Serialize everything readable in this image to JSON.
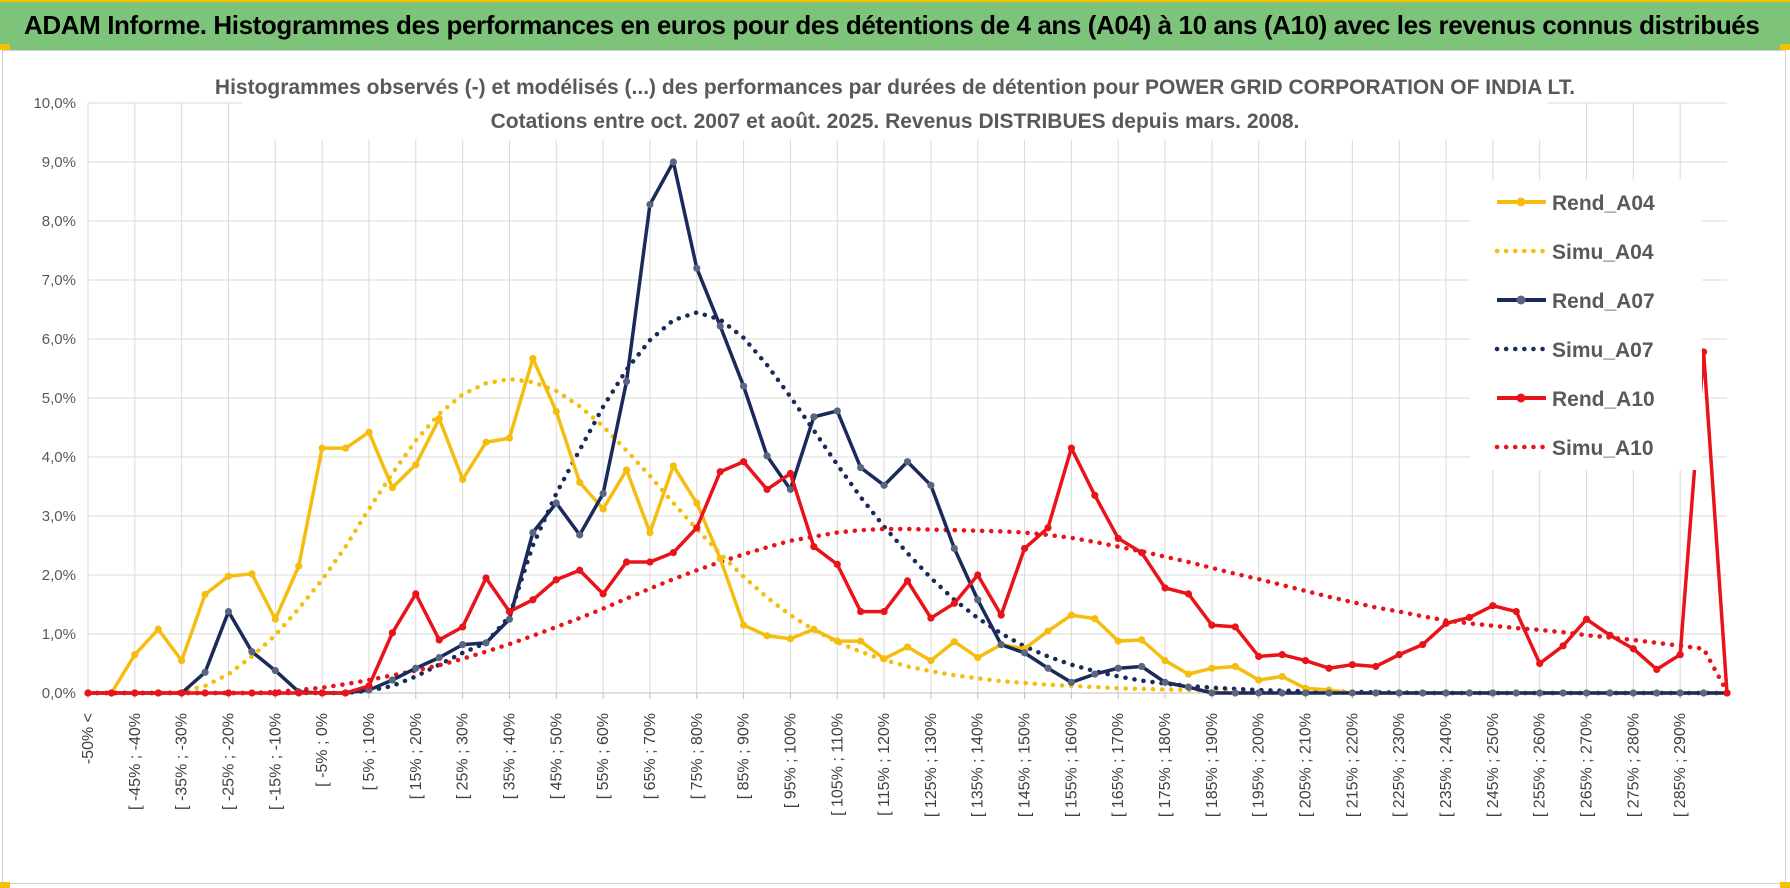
{
  "banner": {
    "title": "ADAM Informe. Histogrammes des performances en euros pour des détentions de 4 ans (A04) à 10 ans (A10) avec les revenus connus distribués"
  },
  "chart_data": {
    "type": "line",
    "title_line1": "Histogrammes observés (-) et modélisés (...) des performances par durées de détention pour POWER GRID CORPORATION OF INDIA LT.",
    "title_line2": "Cotations entre oct. 2007 et août. 2025. Revenus DISTRIBUES depuis mars. 2008.",
    "ylim": [
      0,
      10
    ],
    "yticks": [
      "0,0%",
      "1,0%",
      "2,0%",
      "3,0%",
      "4,0%",
      "5,0%",
      "6,0%",
      "7,0%",
      "8,0%",
      "9,0%",
      "10,0%"
    ],
    "grid": true,
    "legend_position": "right",
    "xtick_labels": [
      "-50% <",
      "[ -45% ; -40%",
      "[ -35% ; -30%",
      "[ -25% ; -20%",
      "[ -15% ; -10%",
      "[ -5% ; 0%",
      "[ 5% ; 10%",
      "[ 15% ; 20%",
      "[ 25% ; 30%",
      "[ 35% ; 40%",
      "[ 45% ; 50%",
      "[ 55% ; 60%",
      "[ 65% ; 70%",
      "[ 75% ; 80%",
      "[ 85% ; 90%",
      "[ 95% ; 100%",
      "[ 105% ; 110%",
      "[ 115% ; 120%",
      "[ 125% ; 130%",
      "[ 135% ; 140%",
      "[ 145% ; 150%",
      "[ 155% ; 160%",
      "[ 165% ; 170%",
      "[ 175% ; 180%",
      "[ 185% ; 190%",
      "[ 195% ; 200%",
      "[ 205% ; 210%",
      "[ 215% ; 220%",
      "[ 225% ; 230%",
      "[ 235% ; 240%",
      "[ 245% ; 250%",
      "[ 255% ; 260%",
      "[ 265% ; 270%",
      "[ 275% ; 280%",
      "[ 285% ; 290%"
    ],
    "n_bins": 71,
    "series": [
      {
        "name": "Rend_A04",
        "color": "#f5bd0f",
        "style": "solid",
        "markers": true,
        "values": [
          0,
          0,
          0.65,
          1.08,
          0.55,
          1.67,
          1.98,
          2.02,
          1.25,
          2.15,
          4.15,
          4.15,
          4.42,
          3.48,
          3.87,
          4.65,
          3.62,
          4.25,
          4.32,
          5.67,
          4.77,
          3.57,
          3.12,
          3.78,
          2.72,
          3.85,
          3.22,
          2.28,
          1.15,
          0.97,
          0.92,
          1.08,
          0.88,
          0.88,
          0.58,
          0.78,
          0.55,
          0.87,
          0.6,
          0.82,
          0.75,
          1.05,
          1.32,
          1.26,
          0.88,
          0.9,
          0.55,
          0.32,
          0.42,
          0.45,
          0.22,
          0.28,
          0.08,
          0.05,
          0,
          0,
          0,
          0,
          0,
          0,
          0,
          0,
          0,
          0,
          0,
          0,
          0,
          0,
          0,
          0,
          0
        ]
      },
      {
        "name": "Simu_A04",
        "color": "#f5bd0f",
        "style": "dotted",
        "markers": false,
        "values": [
          0,
          0,
          0,
          0,
          0.02,
          0.12,
          0.32,
          0.62,
          0.98,
          1.43,
          1.92,
          2.48,
          3.12,
          3.72,
          4.28,
          4.73,
          5.06,
          5.25,
          5.32,
          5.27,
          5.12,
          4.86,
          4.52,
          4.11,
          3.68,
          3.22,
          2.78,
          2.36,
          1.97,
          1.62,
          1.32,
          1.07,
          0.86,
          0.7,
          0.56,
          0.45,
          0.37,
          0.3,
          0.25,
          0.2,
          0.17,
          0.14,
          0.12,
          0.1,
          0.08,
          0.07,
          0.06,
          0.05,
          0.04,
          0.03,
          0.03,
          0.02,
          0.02,
          0.01,
          0.01,
          0,
          0,
          0,
          0,
          0,
          0,
          0,
          0,
          0,
          0,
          0,
          0,
          0,
          0,
          0,
          0
        ]
      },
      {
        "name": "Rend_A07",
        "color": "#1a2a5a",
        "style": "solid",
        "markers": true,
        "values": [
          0,
          0,
          0,
          0,
          0,
          0.35,
          1.38,
          0.7,
          0.38,
          0.02,
          0,
          0,
          0.05,
          0.22,
          0.42,
          0.6,
          0.82,
          0.85,
          1.25,
          2.72,
          3.22,
          2.68,
          3.38,
          5.28,
          8.28,
          9.0,
          7.2,
          6.22,
          5.2,
          4.02,
          3.45,
          4.68,
          4.78,
          3.82,
          3.52,
          3.92,
          3.52,
          2.45,
          1.58,
          0.82,
          0.68,
          0.42,
          0.18,
          0.32,
          0.42,
          0.45,
          0.18,
          0.1,
          0,
          0,
          0,
          0,
          0,
          0,
          0,
          0,
          0,
          0,
          0,
          0,
          0,
          0,
          0,
          0,
          0,
          0,
          0,
          0,
          0,
          0,
          0
        ]
      },
      {
        "name": "Simu_A07",
        "color": "#1a2a5a",
        "style": "dotted",
        "markers": false,
        "values": [
          0,
          0,
          0,
          0,
          0,
          0,
          0,
          0,
          0,
          0,
          0,
          0,
          0.04,
          0.12,
          0.28,
          0.48,
          0.68,
          0.85,
          1.3,
          2.5,
          3.38,
          4.12,
          4.85,
          5.48,
          5.98,
          6.32,
          6.45,
          6.33,
          6.02,
          5.56,
          5.02,
          4.45,
          3.87,
          3.32,
          2.82,
          2.37,
          1.95,
          1.58,
          1.27,
          1.01,
          0.79,
          0.62,
          0.48,
          0.37,
          0.28,
          0.21,
          0.16,
          0.12,
          0.09,
          0.07,
          0.05,
          0.04,
          0.03,
          0.02,
          0.02,
          0.01,
          0.01,
          0,
          0,
          0,
          0,
          0,
          0,
          0,
          0,
          0,
          0,
          0,
          0,
          0,
          0
        ]
      },
      {
        "name": "Rend_A10",
        "color": "#e8141a",
        "style": "solid",
        "markers": true,
        "values": [
          0,
          0,
          0,
          0,
          0,
          0,
          0,
          0,
          0,
          0,
          0,
          0,
          0.12,
          1.02,
          1.68,
          0.9,
          1.12,
          1.95,
          1.38,
          1.58,
          1.92,
          2.08,
          1.68,
          2.22,
          2.22,
          2.38,
          2.8,
          3.75,
          3.92,
          3.45,
          3.72,
          2.48,
          2.18,
          1.38,
          1.38,
          1.9,
          1.27,
          1.52,
          2.0,
          1.32,
          2.45,
          2.8,
          4.15,
          3.35,
          2.62,
          2.38,
          1.78,
          1.68,
          1.15,
          1.12,
          0.62,
          0.65,
          0.55,
          0.42,
          0.48,
          0.45,
          0.65,
          0.82,
          1.18,
          1.28,
          1.48,
          1.38,
          0.5,
          0.8,
          1.25,
          0.98,
          0.75,
          0.4,
          0.65,
          5.78,
          0
        ]
      },
      {
        "name": "Simu_A10",
        "color": "#e8141a",
        "style": "dotted",
        "markers": false,
        "values": [
          0,
          0,
          0,
          0,
          0,
          0,
          0,
          0,
          0.02,
          0.05,
          0.09,
          0.15,
          0.22,
          0.3,
          0.38,
          0.47,
          0.58,
          0.7,
          0.83,
          0.97,
          1.12,
          1.27,
          1.43,
          1.6,
          1.77,
          1.93,
          2.08,
          2.22,
          2.35,
          2.47,
          2.58,
          2.65,
          2.72,
          2.76,
          2.78,
          2.78,
          2.77,
          2.76,
          2.75,
          2.74,
          2.72,
          2.68,
          2.63,
          2.56,
          2.48,
          2.4,
          2.31,
          2.22,
          2.12,
          2.02,
          1.93,
          1.83,
          1.73,
          1.63,
          1.54,
          1.45,
          1.38,
          1.3,
          1.23,
          1.18,
          1.14,
          1.1,
          1.07,
          1.03,
          0.98,
          0.94,
          0.9,
          0.85,
          0.8,
          0.75,
          0.02
        ]
      }
    ]
  }
}
